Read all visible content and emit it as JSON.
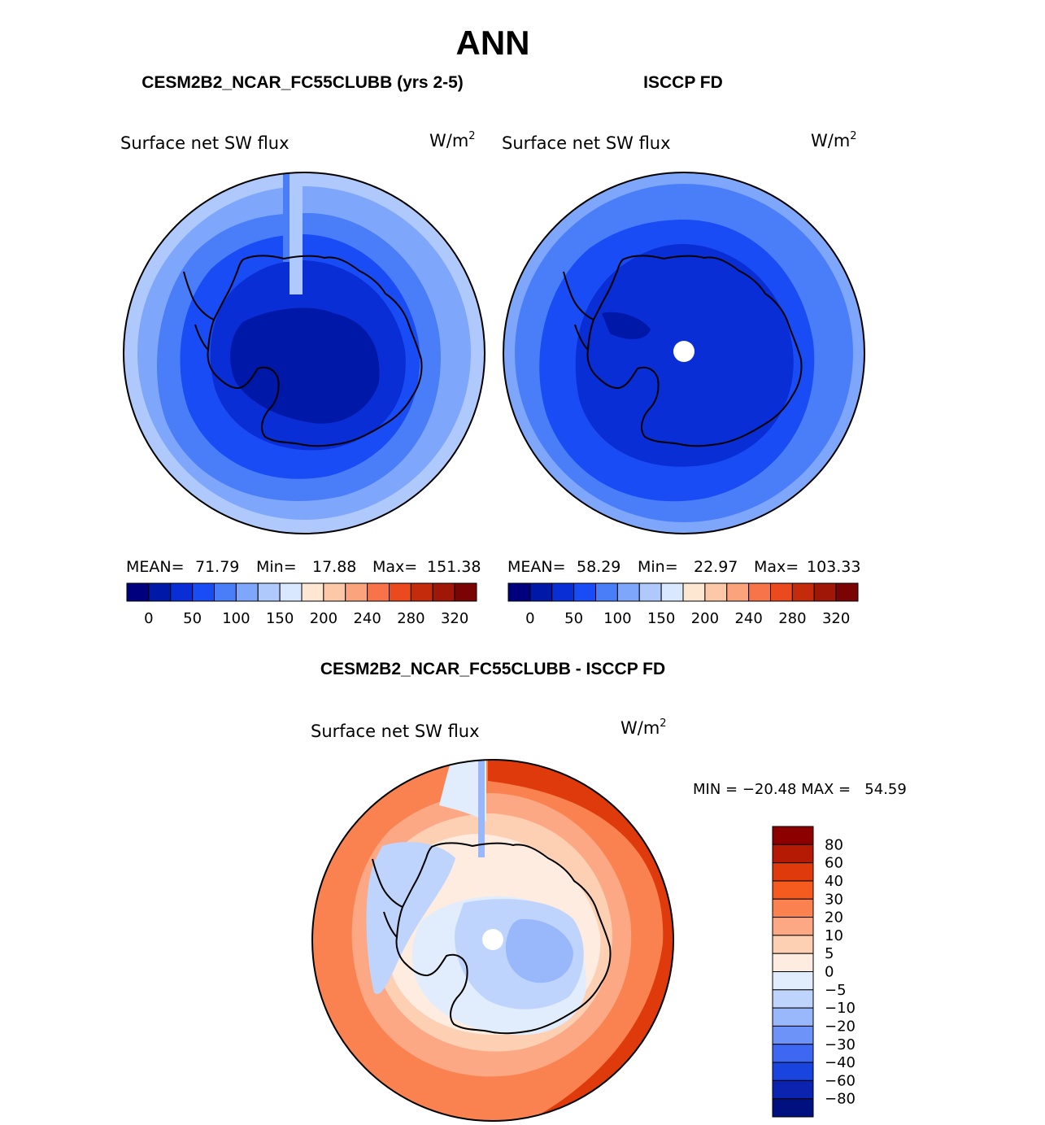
{
  "title": "ANN",
  "panels": {
    "model": {
      "header": "CESM2B2_NCAR_FC55CLUBB (yrs 2-5)",
      "variable": "Surface net SW flux",
      "units": "W/m",
      "units_sup": "2",
      "stats": {
        "mean_label": "MEAN=",
        "mean": "71.79",
        "min_label": "Min=",
        "min": "17.88",
        "max_label": "Max=",
        "max": "151.38"
      }
    },
    "obs": {
      "header": "ISCCP FD",
      "variable": "Surface net SW flux",
      "units": "W/m",
      "units_sup": "2",
      "stats": {
        "mean_label": "MEAN=",
        "mean": "58.29",
        "min_label": "Min=",
        "min": "22.97",
        "max_label": "Max=",
        "max": "103.33"
      }
    },
    "diff": {
      "header": "CESM2B2_NCAR_FC55CLUBB - ISCCP FD",
      "variable": "Surface net SW flux",
      "units": "W/m",
      "units_sup": "2",
      "minmax_text": "MIN = −20.48 MAX =   54.59"
    }
  },
  "chart_data": [
    {
      "type": "heatmap",
      "title": "Surface net SW flux",
      "subtitle": "CESM2B2_NCAR_FC55CLUBB (yrs 2-5)",
      "units": "W/m2",
      "projection": "south-polar-stereographic",
      "colorbar": {
        "orientation": "horizontal",
        "tick_labels": [
          "0",
          "50",
          "100",
          "150",
          "200",
          "240",
          "280",
          "320"
        ],
        "colors": [
          "#00007f",
          "#0018a8",
          "#0a2ed6",
          "#1a4cf5",
          "#4a7ef9",
          "#7ea6fb",
          "#b0c9fd",
          "#d9e8fe",
          "#fde6d2",
          "#fcc8a8",
          "#fba37c",
          "#f7744b",
          "#ea4a1e",
          "#c42b0c",
          "#a01707",
          "#7a0404"
        ]
      },
      "stats": {
        "mean": 71.79,
        "min": 17.88,
        "max": 151.38
      }
    },
    {
      "type": "heatmap",
      "title": "Surface net SW flux",
      "subtitle": "ISCCP FD",
      "units": "W/m2",
      "projection": "south-polar-stereographic",
      "colorbar": {
        "orientation": "horizontal",
        "tick_labels": [
          "0",
          "50",
          "100",
          "150",
          "200",
          "240",
          "280",
          "320"
        ],
        "colors": [
          "#00007f",
          "#0018a8",
          "#0a2ed6",
          "#1a4cf5",
          "#4a7ef9",
          "#7ea6fb",
          "#b0c9fd",
          "#d9e8fe",
          "#fde6d2",
          "#fcc8a8",
          "#fba37c",
          "#f7744b",
          "#ea4a1e",
          "#c42b0c",
          "#a01707",
          "#7a0404"
        ]
      },
      "stats": {
        "mean": 58.29,
        "min": 22.97,
        "max": 103.33
      }
    },
    {
      "type": "heatmap",
      "title": "Surface net SW flux",
      "subtitle": "CESM2B2_NCAR_FC55CLUBB - ISCCP FD",
      "units": "W/m2",
      "projection": "south-polar-stereographic",
      "colorbar": {
        "orientation": "vertical",
        "tick_labels": [
          "80",
          "60",
          "40",
          "30",
          "20",
          "10",
          "5",
          "0",
          "−5",
          "−10",
          "−20",
          "−30",
          "−40",
          "−60",
          "−80"
        ],
        "colors": [
          "#8c0000",
          "#b51a05",
          "#de3a0c",
          "#f55a1e",
          "#fa8250",
          "#fca884",
          "#fdd0b4",
          "#fdecdf",
          "#e1ecfd",
          "#bfd4fd",
          "#99b8fb",
          "#6e93f8",
          "#3f68f2",
          "#1a44de",
          "#0a24b0",
          "#00107f"
        ]
      },
      "stats": {
        "min": -20.48,
        "max": 54.59
      }
    }
  ]
}
